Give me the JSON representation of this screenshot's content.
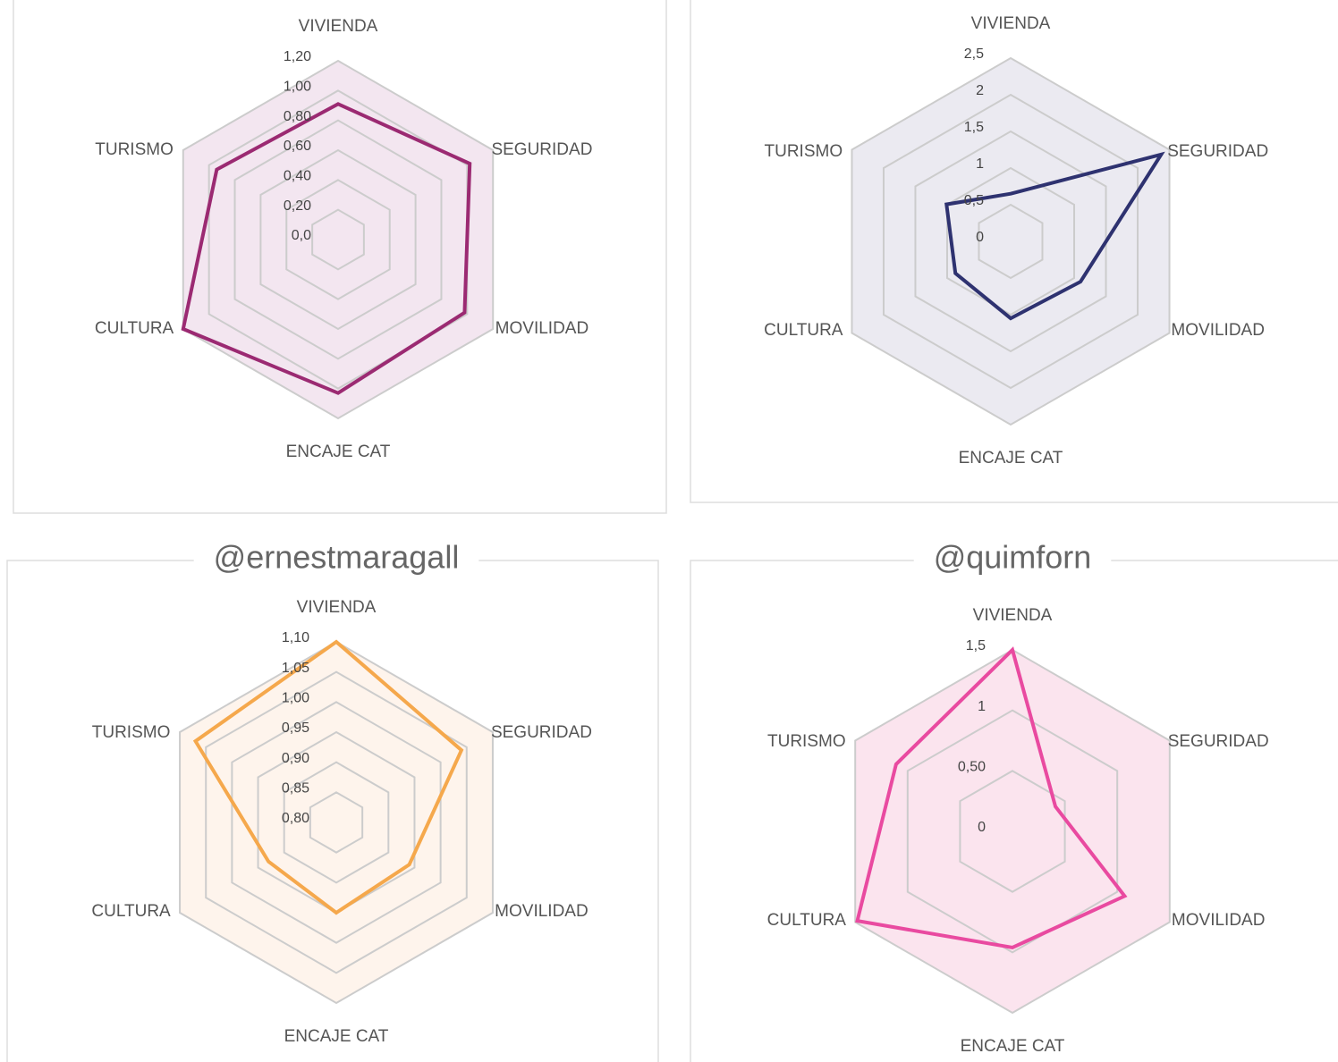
{
  "chart_data": [
    {
      "type": "radar",
      "categories": [
        "VIVIENDA",
        "SEGURIDAD",
        "MOVILIDAD",
        "ENCAJE CAT",
        "CULTURA",
        "TURISMO"
      ],
      "values": [
        0.91,
        1.02,
        0.98,
        1.03,
        1.2,
        0.94
      ],
      "color": "#9b2a72",
      "fill_color": "#f3e6f0",
      "rlim": [
        0,
        1.2
      ],
      "rticks": [
        {
          "value": 0,
          "label": "0,0"
        },
        {
          "value": 0.2,
          "label": "0,20"
        },
        {
          "value": 0.4,
          "label": "0,40"
        },
        {
          "value": 0.6,
          "label": "0,60"
        },
        {
          "value": 0.8,
          "label": "0,80"
        },
        {
          "value": 1.0,
          "label": "1,00"
        },
        {
          "value": 1.2,
          "label": "1,20"
        }
      ]
    },
    {
      "type": "radar",
      "categories": [
        "VIVIENDA",
        "SEGURIDAD",
        "MOVILIDAD",
        "ENCAJE CAT",
        "CULTURA",
        "TURISMO"
      ],
      "values": [
        0.65,
        2.37,
        1.1,
        1.05,
        0.87,
        1.01
      ],
      "color": "#2e3270",
      "fill_color": "#ebeaf1",
      "rlim": [
        0,
        2.5
      ],
      "rticks": [
        0,
        {
          "value": 0.5,
          "label": "0,5"
        },
        1,
        {
          "value": 1.5,
          "label": "1,5"
        },
        2,
        {
          "value": 2.5,
          "label": "2,5"
        }
      ]
    },
    {
      "type": "radar",
      "title": "@ernestmaragall",
      "categories": [
        "VIVIENDA",
        "SEGURIDAD",
        "MOVILIDAD",
        "ENCAJE CAT",
        "CULTURA",
        "TURISMO"
      ],
      "values": [
        1.1,
        1.04,
        0.94,
        0.95,
        0.93,
        1.07
      ],
      "color": "#f5a84c",
      "fill_color": "#fef4ec",
      "rlim": [
        0.8,
        1.1
      ],
      "rticks": [
        {
          "value": 0.8,
          "label": "0,80"
        },
        {
          "value": 0.85,
          "label": "0,85"
        },
        {
          "value": 0.9,
          "label": "0,90"
        },
        {
          "value": 0.95,
          "label": "0,95"
        },
        {
          "value": 1.0,
          "label": "1,00"
        },
        {
          "value": 1.05,
          "label": "1,05"
        },
        {
          "value": 1.1,
          "label": "1,10"
        }
      ]
    },
    {
      "type": "radar",
      "title": "@quimforn",
      "categories": [
        "VIVIENDA",
        "SEGURIDAD",
        "MOVILIDAD",
        "ENCAJE CAT",
        "CULTURA",
        "TURISMO"
      ],
      "values": [
        1.5,
        0.41,
        1.07,
        0.96,
        1.48,
        1.11
      ],
      "color": "#e94aa0",
      "fill_color": "#fbe4ee",
      "rlim": [
        0,
        1.5
      ],
      "rticks": [
        0,
        {
          "value": 0.5,
          "label": "0,50"
        },
        1,
        {
          "value": 1.5,
          "label": "1,5"
        }
      ]
    }
  ]
}
